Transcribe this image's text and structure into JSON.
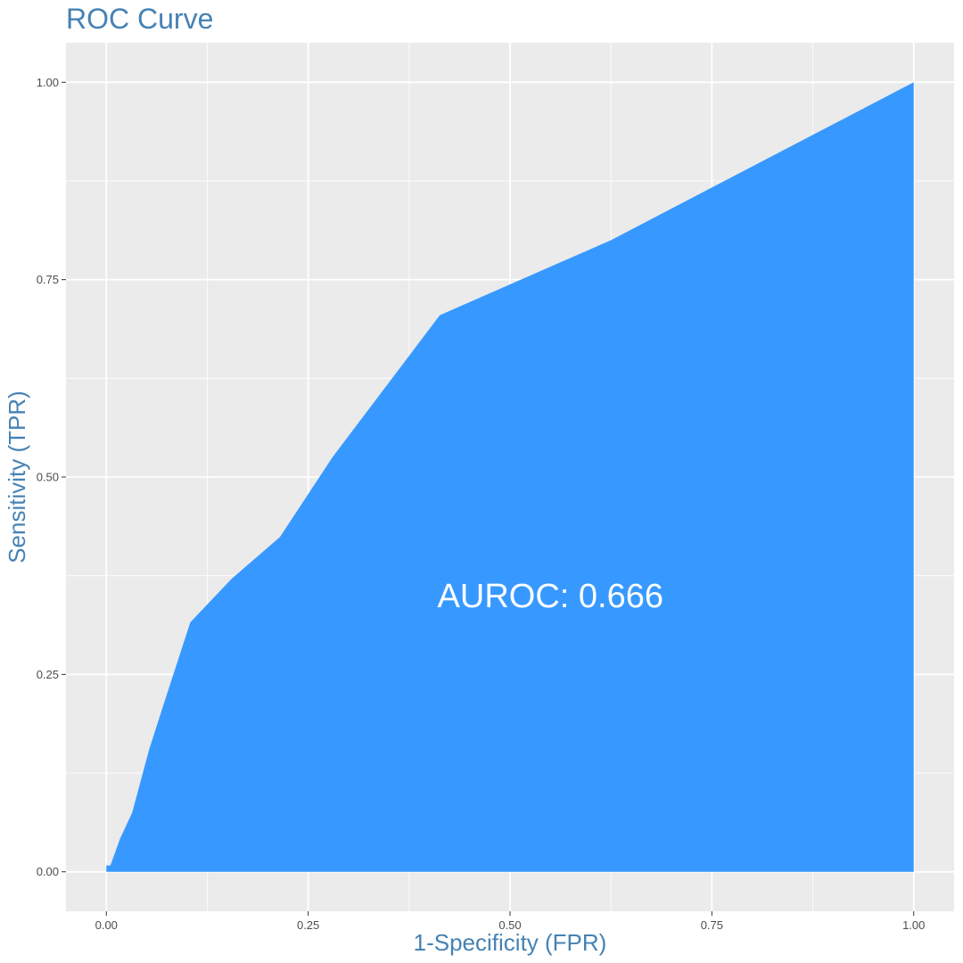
{
  "chart_data": {
    "type": "area",
    "title": "ROC Curve",
    "xlabel": "1-Specificity (FPR)",
    "ylabel": "Sensitivity (TPR)",
    "xlim": [
      -0.05,
      1.05
    ],
    "ylim": [
      -0.05,
      1.05
    ],
    "x_ticks": [
      0,
      0.25,
      0.5,
      0.75,
      1
    ],
    "x_tick_labels": [
      "0.00",
      "0.25",
      "0.50",
      "0.75",
      "1.00"
    ],
    "y_ticks": [
      0,
      0.25,
      0.5,
      0.75,
      1
    ],
    "y_tick_labels": [
      "0.00",
      "0.25",
      "0.50",
      "0.75",
      "1.00"
    ],
    "grid": true,
    "annotation": {
      "text": "AUROC: 0.666",
      "x": 0.55,
      "y": 0.35
    },
    "series": [
      {
        "fpr": [
          0.0,
          0.0,
          0.005,
          0.017,
          0.032,
          0.053,
          0.075,
          0.104,
          0.155,
          0.215,
          0.28,
          0.413,
          0.625,
          1.0
        ],
        "tpr": [
          0.0,
          0.008,
          0.008,
          0.042,
          0.075,
          0.155,
          0.225,
          0.316,
          0.371,
          0.424,
          0.525,
          0.705,
          0.8,
          1.0
        ]
      }
    ]
  },
  "colors": {
    "panel_bg": "#EBEBEB",
    "grid": "#FFFFFF",
    "fill": "#3799FF",
    "title": "#4682B4",
    "tick_text": "#4D4D4D",
    "tick_mark": "#333333"
  }
}
